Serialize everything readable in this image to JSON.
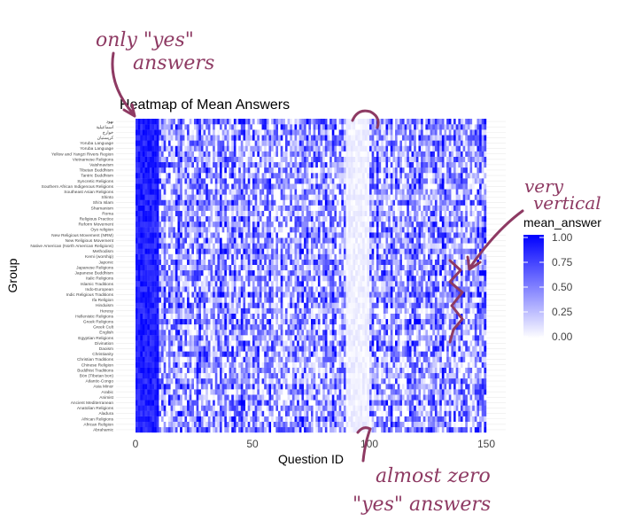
{
  "chart_data": {
    "type": "heatmap",
    "title": "Heatmap of Mean Answers",
    "xlabel": "Question ID",
    "ylabel": "Group",
    "xlim": [
      0,
      150
    ],
    "x_ticks": [
      0,
      50,
      100,
      150
    ],
    "n_questions": 150,
    "value_range": [
      0,
      1
    ],
    "color_low": "#ffffff",
    "color_high": "#0000ff",
    "legend": {
      "title": "mean_answer",
      "ticks": [
        "1.00",
        "0.75",
        "0.50",
        "0.25",
        "0.00"
      ],
      "placement": "right"
    },
    "groups": [
      "Abrahamic",
      "African Religion",
      "African Religions",
      "Aladura",
      "Anatolian Religions",
      "Ancient Mediterranean",
      "Animist",
      "Arabic",
      "Asia Minor",
      "Atlantic-Congo",
      "Bön (Tibetan bon)",
      "Buddhist Traditions",
      "Chinese Religion",
      "Christian Traditions",
      "Christianity",
      "Daoism",
      "Divination",
      "Egyptian Religions",
      "English",
      "Greek Cult",
      "Greek Religions",
      "Hellenistic Religions",
      "Heresy",
      "Hinduism",
      "Ifa Religion",
      "Indic Religious Traditions",
      "Indo-European",
      "Islamic Traditions",
      "Italic Religions",
      "Japanese Buddhism",
      "Japanese Religions",
      "Japonic",
      "Kemi (worship)",
      "Methodism",
      "Native American (North American Religions)",
      "New Religious Movement",
      "New Religious Movement (NRM)",
      "Oyo religion",
      "Reform Movement",
      "Religious Practice",
      "Roma",
      "Shamanism",
      "Shi'a Islam",
      "Shinto",
      "Southeast Asian Religions",
      "Southern African Indigenous Religions",
      "Syncretic Religions",
      "Tantric Buddhism",
      "Tibetan Buddhism",
      "Vaishnavism",
      "Vietnamese Religions",
      "Yellow and Yangzi Rivers Region",
      "Yoruba Language",
      "Yoruba Language",
      "كريستيان",
      "خوارج",
      "اسماعيلية",
      "یهود"
    ],
    "mostly_yes_columns": [
      1,
      2,
      3,
      4,
      5,
      6,
      7,
      8,
      9,
      10
    ],
    "near_zero_columns": [
      91,
      92,
      93,
      94,
      95,
      96,
      97,
      98,
      99,
      100
    ]
  },
  "annotations": {
    "top_left_line1": "only \"yes\"",
    "top_left_line2": "answers",
    "right_line1": "very",
    "right_line2": "vertical",
    "bottom_line1": "almost zero",
    "bottom_line2": "\"yes\" answers"
  },
  "colors": {
    "annotation": "#8e3a63",
    "grid": "#ebebeb",
    "text": "#444444"
  }
}
